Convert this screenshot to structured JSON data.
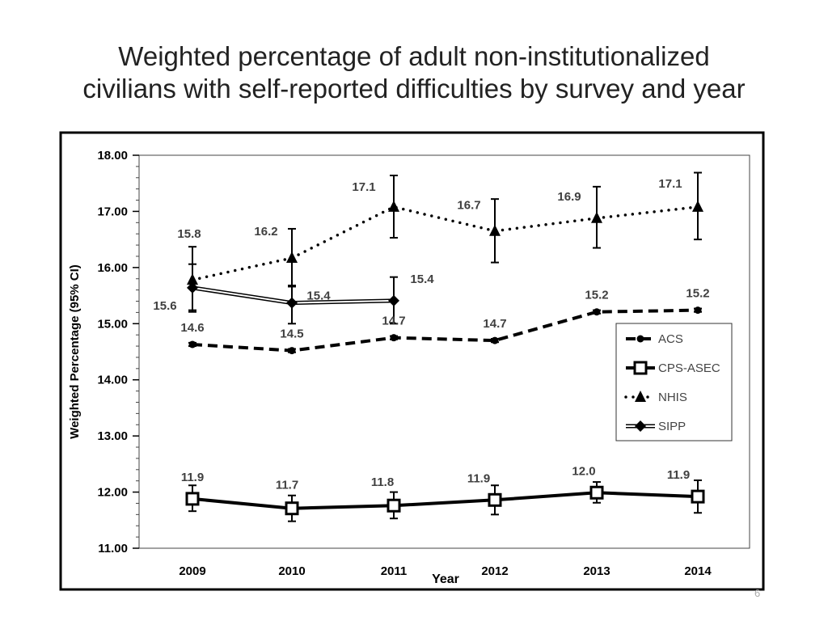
{
  "slide": {
    "title_line1": "Weighted percentage of adult non-institutionalized",
    "title_line2": "civilians with self-reported difficulties by survey and year",
    "page_number": "6"
  },
  "chart_data": {
    "type": "line",
    "title": "Weighted percentage of adult non-institutionalized civilians with self-reported difficulties by survey and year",
    "xlabel": "Year",
    "ylabel": "Weighted Percentage (95% CI)",
    "categories": [
      "2009",
      "2010",
      "2011",
      "2012",
      "2013",
      "2014"
    ],
    "ylim": [
      11.0,
      18.0
    ],
    "yticks": [
      "11.00",
      "12.00",
      "13.00",
      "14.00",
      "15.00",
      "16.00",
      "17.00",
      "18.00"
    ],
    "grid": false,
    "legend_position": "right",
    "series": [
      {
        "name": "ACS",
        "style": "dashed",
        "marker": "circle",
        "values": [
          14.63,
          14.52,
          14.75,
          14.7,
          15.21,
          15.24
        ],
        "labels": [
          "14.6",
          "14.5",
          "14.7",
          "14.7",
          "15.2",
          "15.2"
        ],
        "ci_low": [
          14.6,
          14.49,
          14.72,
          14.67,
          15.18,
          15.21
        ],
        "ci_high": [
          14.66,
          14.55,
          14.78,
          14.73,
          15.24,
          15.27
        ]
      },
      {
        "name": "CPS-ASEC",
        "style": "solid",
        "marker": "square",
        "values": [
          11.88,
          11.71,
          11.76,
          11.86,
          11.99,
          11.92
        ],
        "labels": [
          "11.9",
          "11.7",
          "11.8",
          "11.9",
          "12.0",
          "11.9"
        ],
        "ci_low": [
          11.66,
          11.48,
          11.53,
          11.6,
          11.81,
          11.63
        ],
        "ci_high": [
          12.12,
          11.94,
          12.0,
          12.12,
          12.18,
          12.21
        ]
      },
      {
        "name": "NHIS",
        "style": "dotted",
        "marker": "triangle",
        "values": [
          15.78,
          16.17,
          17.08,
          16.65,
          16.88,
          17.08
        ],
        "labels": [
          "15.8",
          "16.2",
          "17.1",
          "16.7",
          "16.9",
          "17.1"
        ],
        "ci_low": [
          15.21,
          15.66,
          16.53,
          16.09,
          16.35,
          16.5
        ],
        "ci_high": [
          16.37,
          16.69,
          17.64,
          17.22,
          17.44,
          17.69
        ]
      },
      {
        "name": "SIPP",
        "style": "double",
        "marker": "diamond",
        "values": [
          15.64,
          15.37,
          15.41,
          null,
          null,
          null
        ],
        "labels": [
          "15.6",
          "15.4",
          "15.4",
          null,
          null,
          null
        ],
        "ci_low": [
          15.24,
          15.0,
          15.0,
          null,
          null,
          null
        ],
        "ci_high": [
          16.06,
          15.68,
          15.83,
          null,
          null,
          null
        ]
      }
    ],
    "colors": {
      "lines": "#000000",
      "labels": "#404040"
    }
  }
}
